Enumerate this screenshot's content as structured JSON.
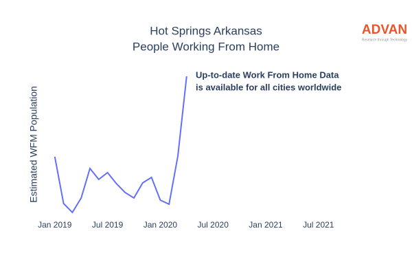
{
  "chart_data": {
    "type": "line",
    "title": [
      "Hot Springs Arkansas",
      "People Working From Home"
    ],
    "y_axis_label": "Estimated WFM Population",
    "annotation": [
      "Up-to-date Work From Home Data",
      "is available for all cities worldwide"
    ],
    "logo": {
      "name": "ADVAN",
      "tagline": "Research through Technology"
    },
    "x": [
      "2019-01",
      "2019-02",
      "2019-03",
      "2019-04",
      "2019-05",
      "2019-06",
      "2019-07",
      "2019-08",
      "2019-09",
      "2019-10",
      "2019-11",
      "2019-12",
      "2020-01",
      "2020-02",
      "2020-03",
      "2020-04"
    ],
    "series": [
      {
        "name": "Estimated WFM Population",
        "color": "#636efa",
        "values": [
          92,
          24,
          11,
          32,
          75,
          59,
          69,
          53,
          40,
          32,
          54,
          62,
          29,
          23,
          93,
          209
        ]
      }
    ],
    "xlim": [
      "2018-12",
      "2021-11"
    ],
    "xticks": [
      {
        "value": "2019-01",
        "label": "Jan 2019"
      },
      {
        "value": "2019-07",
        "label": "Jul 2019"
      },
      {
        "value": "2020-01",
        "label": "Jan 2020"
      },
      {
        "value": "2020-07",
        "label": "Jul 2020"
      },
      {
        "value": "2021-01",
        "label": "Jan 2021"
      },
      {
        "value": "2021-07",
        "label": "Jul 2021"
      }
    ],
    "ylim": [
      0,
      220
    ],
    "grid": false
  }
}
